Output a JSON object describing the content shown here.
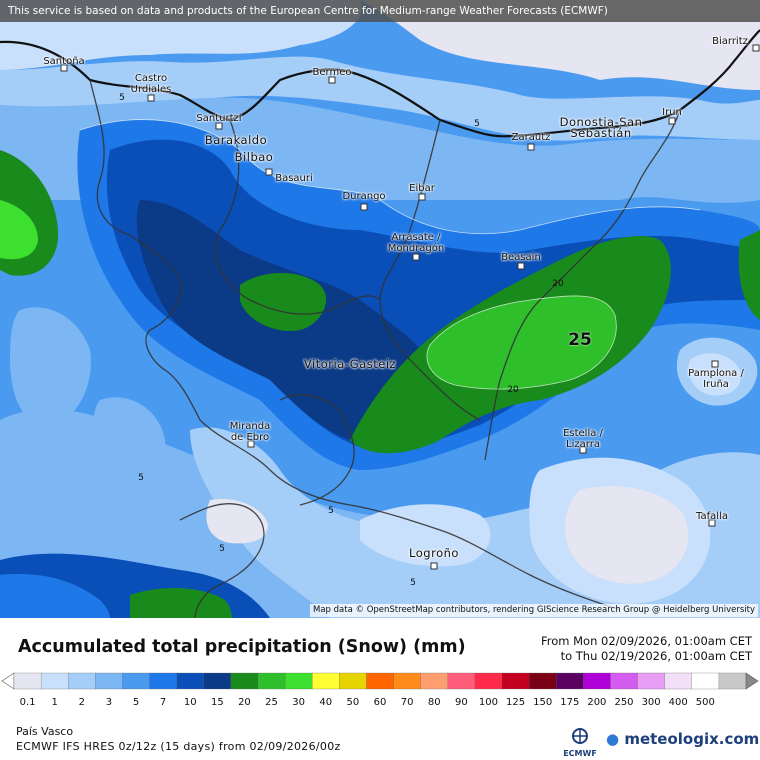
{
  "banner": "This service is based on data and products of the European Centre for Medium-range Weather Forecasts (ECMWF)",
  "attribution": "Map data © OpenStreetMap contributors, rendering GIScience Research Group @ Heidelberg University",
  "cities": {
    "santona": "Santoña",
    "castro": "Castro\nUrdiales",
    "bermeo": "Bermeo",
    "biarritz": "Biarritz",
    "santurtzi": "Santurtzi",
    "barakaldo": "Barakaldo",
    "bilbao": "Bilbao",
    "basauri": "Basauri",
    "durango": "Durango",
    "eibar": "Eibar",
    "zarautz": "Zarautz",
    "donostia": "Donostia-San\nSebastián",
    "irun": "Irun",
    "arrasate": "Arrasate /\nMondragón",
    "beasain": "Beasain",
    "vitoria": "Vitoria-Gasteiz",
    "pamplona": "Pamplona /\nIruña",
    "miranda": "Miranda\nde Ebro",
    "estella": "Estella /\nLizarra",
    "tafalla": "Tafalla",
    "logrono": "Logroño"
  },
  "contour_labels": {
    "c5_a": "5",
    "c5_b": "5",
    "c5_c": "5",
    "c5_d": "5",
    "c5_e": "5",
    "c5_f": "5",
    "c20_a": "20",
    "c20_b": "20",
    "c25": "25"
  },
  "legend": {
    "title": "Accumulated total precipitation (Snow) (mm)",
    "from": "From Mon 02/09/2026, 01:00am CET",
    "to": "to Thu 02/19/2026, 01:00am CET",
    "ticks": [
      "0.1",
      "1",
      "2",
      "3",
      "5",
      "7",
      "10",
      "15",
      "20",
      "25",
      "30",
      "40",
      "50",
      "60",
      "70",
      "80",
      "90",
      "100",
      "125",
      "150",
      "175",
      "200",
      "250",
      "300",
      "400",
      "500"
    ],
    "colors": [
      "#e6e6f2",
      "#c8e0fb",
      "#a4cdf8",
      "#7cb6f3",
      "#4a9af0",
      "#1f78e8",
      "#0a4fb8",
      "#0b3a86",
      "#198a1c",
      "#2fbf2a",
      "#3ee02f",
      "#ffff33",
      "#e6d400",
      "#ff6600",
      "#ff8c1a",
      "#ff9f70",
      "#ff5e7a",
      "#ff2a4a",
      "#c40020",
      "#7a0018",
      "#5a0060",
      "#b000d8",
      "#d45cf0",
      "#e89ef5",
      "#f2dff8",
      "#ffffff",
      "#c8c8c8"
    ]
  },
  "region": "País Vasco",
  "model": "ECMWF IFS HRES 0z/12z (15 days) from 02/09/2026/00z",
  "ecmwf_logo": "ECMWF",
  "brand": "meteologix.com"
}
